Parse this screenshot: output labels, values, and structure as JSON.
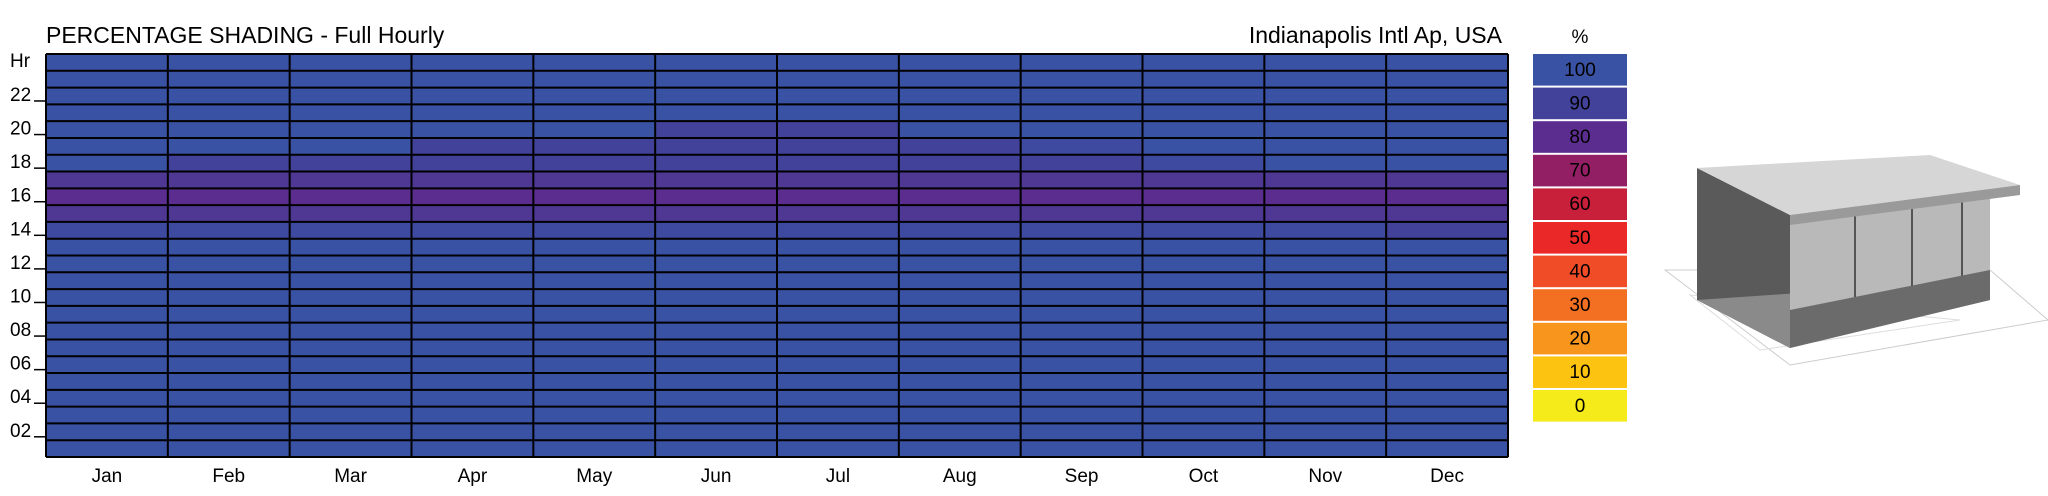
{
  "chart_data": {
    "type": "heatmap",
    "title": "PERCENTAGE SHADING - Full Hourly",
    "subtitle": "Indianapolis Intl Ap, USA",
    "y_label": "Hr",
    "colorbar_title": "%",
    "categories": [
      "Jan",
      "Feb",
      "Mar",
      "Apr",
      "May",
      "Jun",
      "Jul",
      "Aug",
      "Sep",
      "Oct",
      "Nov",
      "Dec"
    ],
    "y_categories": [
      null,
      null,
      "22",
      null,
      "20",
      null,
      "18",
      null,
      "16",
      null,
      "14",
      null,
      "12",
      null,
      "10",
      null,
      "08",
      null,
      "06",
      null,
      "04",
      null,
      "02",
      null
    ],
    "values": [
      [
        100,
        100,
        100,
        100,
        100,
        100,
        100,
        100,
        100,
        100,
        100,
        100
      ],
      [
        100,
        100,
        100,
        100,
        100,
        100,
        100,
        100,
        100,
        100,
        100,
        100
      ],
      [
        100,
        100,
        100,
        100,
        100,
        100,
        100,
        100,
        100,
        100,
        100,
        100
      ],
      [
        100,
        100,
        100,
        100,
        100,
        100,
        100,
        100,
        100,
        100,
        100,
        100
      ],
      [
        100,
        100,
        100,
        100,
        100,
        90,
        90,
        100,
        100,
        100,
        100,
        100
      ],
      [
        100,
        100,
        100,
        90,
        90,
        90,
        90,
        90,
        95,
        100,
        100,
        100
      ],
      [
        100,
        90,
        90,
        90,
        90,
        90,
        90,
        90,
        90,
        95,
        100,
        100
      ],
      [
        85,
        85,
        85,
        85,
        85,
        85,
        85,
        85,
        85,
        85,
        85,
        85
      ],
      [
        80,
        80,
        80,
        80,
        80,
        80,
        80,
        80,
        80,
        80,
        80,
        80
      ],
      [
        85,
        85,
        85,
        85,
        85,
        85,
        85,
        85,
        85,
        85,
        85,
        85
      ],
      [
        95,
        95,
        95,
        95,
        95,
        95,
        95,
        95,
        95,
        95,
        95,
        90
      ],
      [
        100,
        100,
        100,
        100,
        100,
        100,
        100,
        100,
        100,
        100,
        100,
        100
      ],
      [
        100,
        100,
        100,
        100,
        100,
        100,
        100,
        100,
        100,
        100,
        100,
        100
      ],
      [
        100,
        100,
        100,
        100,
        100,
        100,
        100,
        100,
        100,
        100,
        100,
        100
      ],
      [
        100,
        100,
        100,
        100,
        100,
        100,
        100,
        100,
        100,
        100,
        100,
        100
      ],
      [
        100,
        100,
        100,
        100,
        100,
        100,
        100,
        100,
        100,
        100,
        100,
        100
      ],
      [
        100,
        100,
        100,
        100,
        100,
        100,
        100,
        100,
        100,
        100,
        100,
        100
      ],
      [
        100,
        100,
        100,
        100,
        100,
        100,
        100,
        100,
        100,
        100,
        100,
        100
      ],
      [
        100,
        100,
        100,
        100,
        100,
        100,
        100,
        100,
        100,
        100,
        100,
        100
      ],
      [
        100,
        100,
        100,
        100,
        100,
        100,
        100,
        100,
        100,
        100,
        100,
        100
      ],
      [
        100,
        100,
        100,
        100,
        100,
        100,
        100,
        100,
        100,
        100,
        100,
        100
      ],
      [
        100,
        100,
        100,
        100,
        100,
        100,
        100,
        100,
        100,
        100,
        100,
        100
      ],
      [
        100,
        100,
        100,
        100,
        100,
        100,
        100,
        100,
        100,
        100,
        100,
        100
      ],
      [
        100,
        100,
        100,
        100,
        100,
        100,
        100,
        100,
        100,
        100,
        100,
        100
      ]
    ],
    "colorscale": [
      {
        "value": 100,
        "color": "#3a52a3"
      },
      {
        "value": 90,
        "color": "#42429a"
      },
      {
        "value": 80,
        "color": "#5b2d8e"
      },
      {
        "value": 70,
        "color": "#921f63"
      },
      {
        "value": 60,
        "color": "#c8203a"
      },
      {
        "value": 50,
        "color": "#e92827"
      },
      {
        "value": 40,
        "color": "#ef4c27"
      },
      {
        "value": 30,
        "color": "#f37023"
      },
      {
        "value": 20,
        "color": "#f7951d"
      },
      {
        "value": 10,
        "color": "#fcc310"
      },
      {
        "value": 0,
        "color": "#f5ea1a"
      }
    ]
  }
}
